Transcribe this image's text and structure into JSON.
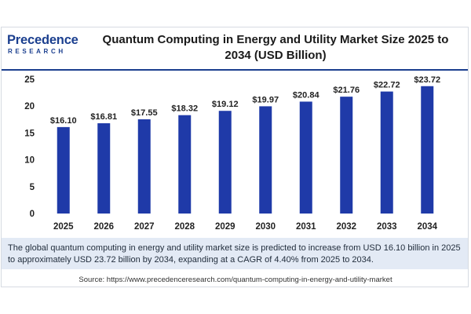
{
  "brand": {
    "name": "Precedence",
    "sub": "RESEARCH"
  },
  "chart_data": {
    "type": "bar",
    "title": "Quantum Computing in Energy and Utility Market Size 2025 to 2034 (USD Billion)",
    "categories": [
      "2025",
      "2026",
      "2027",
      "2028",
      "2029",
      "2030",
      "2031",
      "2032",
      "2033",
      "2034"
    ],
    "values": [
      16.1,
      16.81,
      17.55,
      18.32,
      19.12,
      19.97,
      20.84,
      21.76,
      22.72,
      23.72
    ],
    "data_labels": [
      "$16.10",
      "$16.81",
      "$17.55",
      "$18.32",
      "$19.12",
      "$19.97",
      "$20.84",
      "$21.76",
      "$22.72",
      "$23.72"
    ],
    "yticks": [
      0,
      5,
      10,
      15,
      20,
      25
    ],
    "ylim": [
      0,
      25
    ],
    "xlabel": "",
    "ylabel": "",
    "grid": false,
    "bar_color": "#1f3aa8"
  },
  "summary": "The global quantum computing in energy and utility market size is predicted to increase from USD 16.10 billion in 2025 to approximately USD 23.72 billion by 2034, expanding at a CAGR of 4.40% from 2025 to 2034.",
  "source": "Source: https://www.precedenceresearch.com/quantum-computing-in-energy-and-utility-market"
}
